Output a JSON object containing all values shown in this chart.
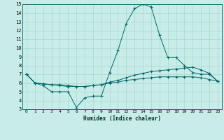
{
  "xlabel": "Humidex (Indice chaleur)",
  "bg_color": "#c8ece8",
  "grid_color": "#a8d8d0",
  "line_color": "#006868",
  "xlim": [
    -0.5,
    23.5
  ],
  "ylim": [
    3,
    15
  ],
  "xticks": [
    0,
    1,
    2,
    3,
    4,
    5,
    6,
    7,
    8,
    9,
    10,
    11,
    12,
    13,
    14,
    15,
    16,
    17,
    18,
    19,
    20,
    21,
    22,
    23
  ],
  "yticks": [
    3,
    4,
    5,
    6,
    7,
    8,
    9,
    10,
    11,
    12,
    13,
    14,
    15
  ],
  "series": [
    {
      "x": [
        0,
        1,
        2,
        3,
        4,
        5,
        6,
        7,
        8,
        9,
        10,
        11,
        12,
        13,
        14,
        15,
        16,
        17,
        18,
        19,
        20,
        21,
        22,
        23
      ],
      "y": [
        7.0,
        6.0,
        5.7,
        5.0,
        5.0,
        5.0,
        3.2,
        4.3,
        4.5,
        4.5,
        7.2,
        9.7,
        12.8,
        14.5,
        15.0,
        14.7,
        11.5,
        8.9,
        8.9,
        8.0,
        7.2,
        7.0,
        7.0,
        6.2
      ]
    },
    {
      "x": [
        0,
        1,
        2,
        3,
        4,
        5,
        6,
        7,
        8,
        9,
        10,
        11,
        12,
        13,
        14,
        15,
        16,
        17,
        18,
        19,
        20,
        21,
        22,
        23
      ],
      "y": [
        7.0,
        6.0,
        5.9,
        5.8,
        5.7,
        5.6,
        5.6,
        5.6,
        5.7,
        5.8,
        6.1,
        6.3,
        6.6,
        6.9,
        7.1,
        7.3,
        7.4,
        7.5,
        7.6,
        7.7,
        7.8,
        7.5,
        7.1,
        6.2
      ]
    },
    {
      "x": [
        0,
        1,
        2,
        3,
        4,
        5,
        6,
        7,
        8,
        9,
        10,
        11,
        12,
        13,
        14,
        15,
        16,
        17,
        18,
        19,
        20,
        21,
        22,
        23
      ],
      "y": [
        7.0,
        6.0,
        5.9,
        5.8,
        5.8,
        5.7,
        5.6,
        5.6,
        5.7,
        5.8,
        6.0,
        6.1,
        6.3,
        6.4,
        6.5,
        6.6,
        6.7,
        6.7,
        6.7,
        6.7,
        6.7,
        6.6,
        6.4,
        6.2
      ]
    }
  ]
}
